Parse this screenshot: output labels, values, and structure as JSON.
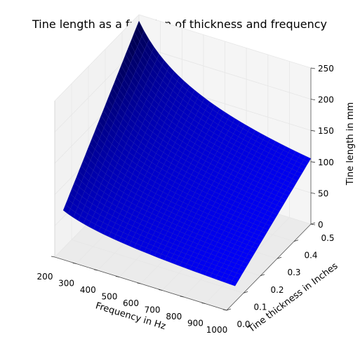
{
  "chart_data": {
    "type": "surface3d",
    "title": "Tine length as a function of thickness and frequency",
    "xlabel": "Frequency in Hz",
    "ylabel": "Tine thickness in Inches",
    "zlabel": "Tine length in mm",
    "x_ticks": [
      200,
      300,
      400,
      500,
      600,
      700,
      800,
      900,
      1000
    ],
    "y_ticks": [
      0.0,
      0.1,
      0.2,
      0.3,
      0.4,
      0.5
    ],
    "z_ticks": [
      0,
      50,
      100,
      150,
      200,
      250
    ],
    "x_tick_labels": [
      "200",
      "300",
      "400",
      "500",
      "600",
      "700",
      "800",
      "900",
      "1000"
    ],
    "y_tick_labels": [
      "0.0",
      "0.1",
      "0.2",
      "0.3",
      "0.4",
      "0.5"
    ],
    "z_tick_labels": [
      "0",
      "50",
      "100",
      "150",
      "200",
      "250"
    ],
    "xlim": [
      200,
      1000
    ],
    "ylim": [
      0.0,
      0.5
    ],
    "zlim": [
      0,
      250
    ],
    "surface": {
      "x_range": [
        200,
        1000
      ],
      "y_range": [
        0.05,
        0.5
      ],
      "corners": [
        {
          "x": 200,
          "y": 0.05,
          "z": 61
        },
        {
          "x": 1000,
          "y": 0.05,
          "z": 25
        },
        {
          "x": 200,
          "y": 0.5,
          "z": 240
        },
        {
          "x": 1000,
          "y": 0.5,
          "z": 105
        }
      ]
    },
    "grid": true,
    "colors": {
      "surface_dark": "#000055",
      "surface_light": "#0000ff",
      "pane": "#f2f2f2",
      "grid": "#e6e6e6"
    }
  }
}
